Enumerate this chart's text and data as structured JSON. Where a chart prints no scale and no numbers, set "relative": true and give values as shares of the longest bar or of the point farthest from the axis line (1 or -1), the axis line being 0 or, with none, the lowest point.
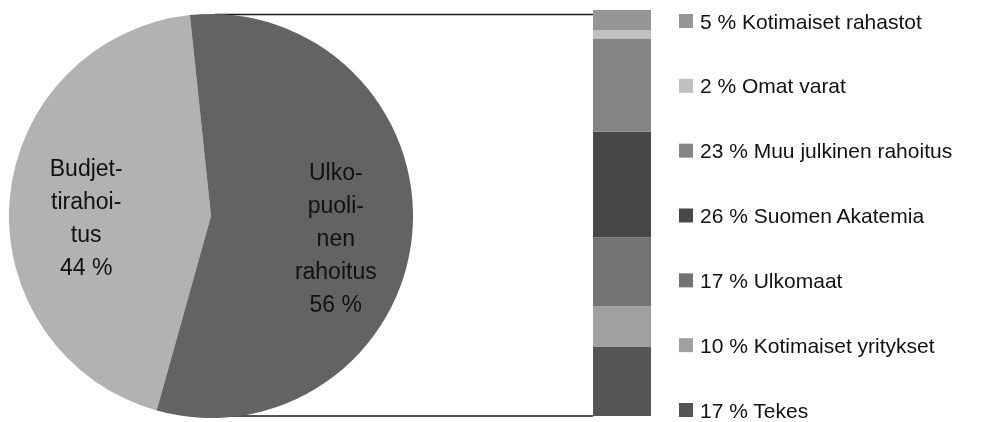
{
  "chart_data": [
    {
      "type": "pie",
      "categories": [
        "Budjet-\ntirahoi-\ntus",
        "Ulko-\npuoli-\nnen\nrahoitus"
      ],
      "values": [
        44,
        56
      ],
      "value_labels": [
        "44 %",
        "56 %"
      ],
      "colors": [
        "#b2b2b2",
        "#636363"
      ]
    },
    {
      "type": "bar",
      "stacked": true,
      "relative": true,
      "categories": [
        null
      ],
      "legend": "right",
      "series": [
        {
          "name": "17 % Tekes",
          "color": "#555555",
          "values": [
            0.17
          ]
        },
        {
          "name": "10 % Kotimaiset yritykset",
          "color": "#a0a0a0",
          "values": [
            0.1
          ]
        },
        {
          "name": "17 % Ulkomaat",
          "color": "#737373",
          "values": [
            0.17
          ]
        },
        {
          "name": "26 % Suomen Akatemia",
          "color": "#474747",
          "values": [
            0.26
          ]
        },
        {
          "name": "23 % Muu julkinen rahoitus",
          "color": "#858585",
          "values": [
            0.23
          ]
        },
        {
          "name": "2 % Omat varat",
          "color": "#c0c0c0",
          "values": [
            0.02
          ]
        },
        {
          "name": "5 % Kotimaiset rahastot",
          "color": "#969696",
          "values": [
            0.05
          ]
        }
      ]
    }
  ]
}
